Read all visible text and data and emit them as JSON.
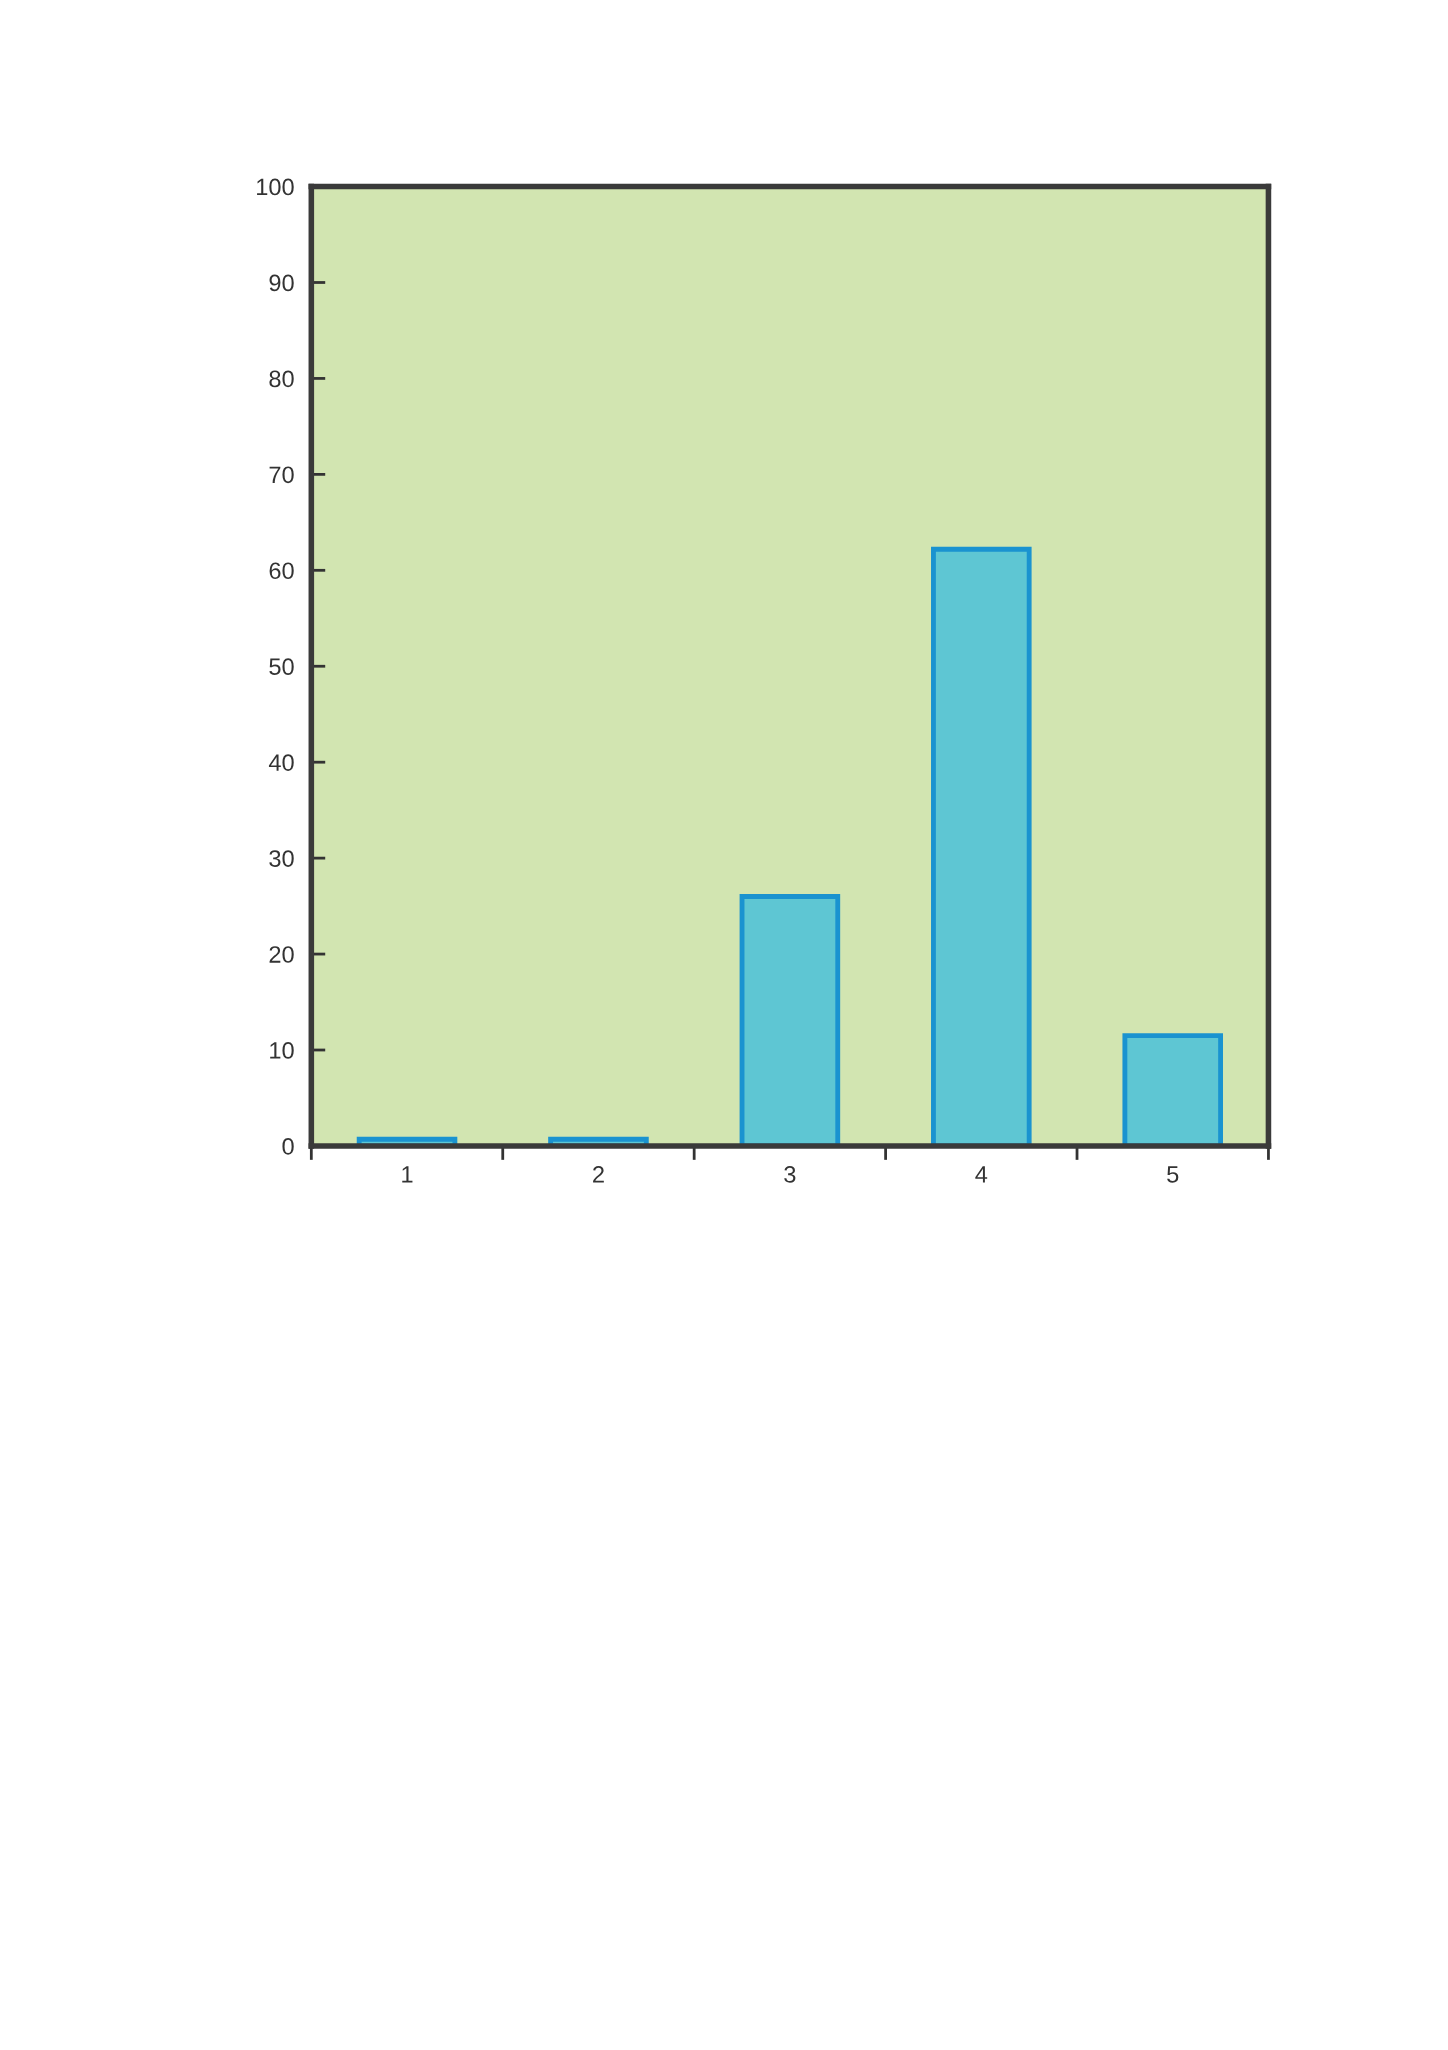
{
  "chart_data": {
    "type": "bar",
    "categories": [
      "1",
      "2",
      "3",
      "4",
      "5"
    ],
    "values": [
      0.7,
      0.7,
      26,
      62.2,
      11.5
    ],
    "color": "#5ec6d3",
    "ylim": [
      0,
      100
    ],
    "yticks": [
      0,
      10,
      20,
      30,
      40,
      50,
      60,
      70,
      80,
      90,
      100
    ],
    "grid": false,
    "legend": false
  }
}
